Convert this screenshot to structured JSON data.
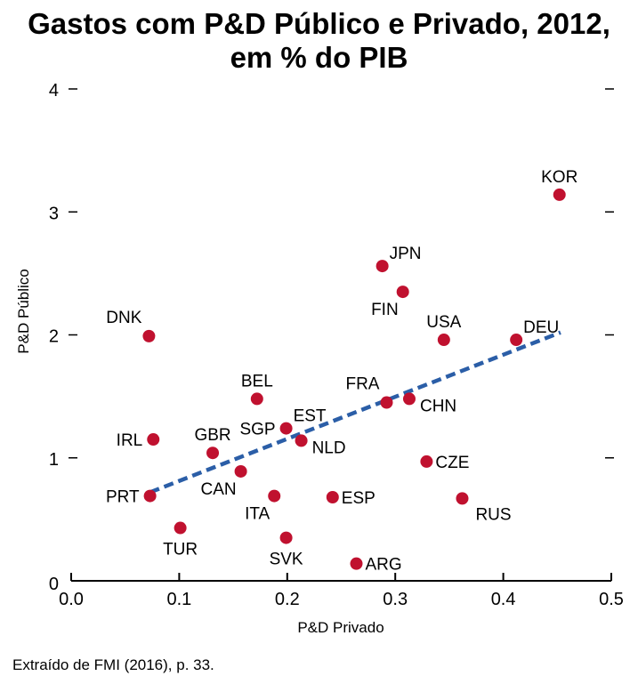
{
  "chart_data": {
    "type": "scatter",
    "title_line1": "Gastos com P&D Público e Privado, 2012,",
    "title_line2": "em % do PIB",
    "xlabel": "P&D Privado",
    "ylabel": "P&D Público",
    "xlim": [
      0.0,
      0.5
    ],
    "ylim": [
      0,
      4
    ],
    "xticks": [
      "0.0",
      "0.1",
      "0.2",
      "0.3",
      "0.4",
      "0.5"
    ],
    "yticks": [
      "0",
      "1",
      "2",
      "3",
      "4"
    ],
    "grid": false,
    "point_color": "#c0112f",
    "trend_color": "#2b5ea7",
    "points": [
      {
        "label": "KOR",
        "x": 0.452,
        "y": 3.14,
        "pos": "above"
      },
      {
        "label": "JPN",
        "x": 0.288,
        "y": 2.56,
        "pos": "upper-right"
      },
      {
        "label": "FIN",
        "x": 0.307,
        "y": 2.35,
        "pos": "lower-left"
      },
      {
        "label": "USA",
        "x": 0.345,
        "y": 1.96,
        "pos": "above"
      },
      {
        "label": "DEU",
        "x": 0.412,
        "y": 1.96,
        "pos": "upper-right"
      },
      {
        "label": "DNK",
        "x": 0.072,
        "y": 1.99,
        "pos": "upper-left"
      },
      {
        "label": "BEL",
        "x": 0.172,
        "y": 1.48,
        "pos": "above"
      },
      {
        "label": "FRA",
        "x": 0.292,
        "y": 1.45,
        "pos": "upper-left"
      },
      {
        "label": "CHN",
        "x": 0.313,
        "y": 1.48,
        "pos": "right-low"
      },
      {
        "label": "IRL",
        "x": 0.076,
        "y": 1.15,
        "pos": "left"
      },
      {
        "label": "SGP",
        "x": 0.199,
        "y": 1.24,
        "pos": "left"
      },
      {
        "label": "EST",
        "x": 0.199,
        "y": 1.24,
        "pos": "upper-right"
      },
      {
        "label": "NLD",
        "x": 0.213,
        "y": 1.14,
        "pos": "right-low"
      },
      {
        "label": "GBR",
        "x": 0.131,
        "y": 1.04,
        "pos": "above"
      },
      {
        "label": "CAN",
        "x": 0.157,
        "y": 0.89,
        "pos": "lower-left"
      },
      {
        "label": "CZE",
        "x": 0.329,
        "y": 0.97,
        "pos": "right"
      },
      {
        "label": "PRT",
        "x": 0.073,
        "y": 0.69,
        "pos": "left"
      },
      {
        "label": "ITA",
        "x": 0.188,
        "y": 0.69,
        "pos": "lower-left"
      },
      {
        "label": "ESP",
        "x": 0.242,
        "y": 0.68,
        "pos": "right"
      },
      {
        "label": "RUS",
        "x": 0.362,
        "y": 0.67,
        "pos": "lower-right"
      },
      {
        "label": "TUR",
        "x": 0.101,
        "y": 0.43,
        "pos": "below"
      },
      {
        "label": "SVK",
        "x": 0.199,
        "y": 0.35,
        "pos": "below"
      },
      {
        "label": "ARG",
        "x": 0.264,
        "y": 0.14,
        "pos": "right"
      }
    ],
    "trend_line": {
      "x": [
        0.073,
        0.453
      ],
      "y": [
        0.72,
        2.02
      ]
    }
  },
  "source": "Extraído de FMI (2016), p. 33."
}
